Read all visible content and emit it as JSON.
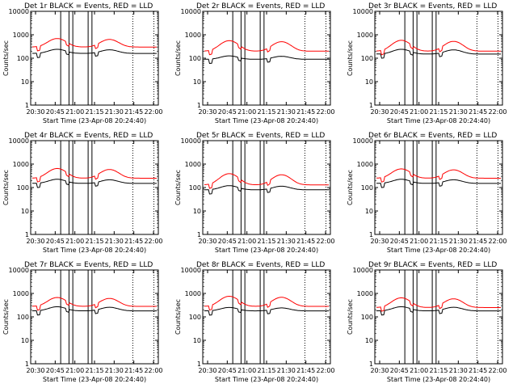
{
  "colors": {
    "events": "#000000",
    "lld": "#ff0000"
  },
  "chart_data": [
    {
      "type": "line",
      "title": "Det 1r BLACK = Events, RED = LLD",
      "xlabel": "Start Time (23-Apr-08 20:24:40)",
      "ylabel": "Counts/sec",
      "x": [
        "20:30",
        "20:45",
        "21:00",
        "21:15",
        "21:30",
        "21:45",
        "22:00"
      ],
      "yscale": "log",
      "ylim": [
        1,
        10000
      ],
      "yticks": [
        "1",
        "10",
        "100",
        "1000",
        "10000"
      ],
      "series": [
        {
          "name": "BLACK = Events",
          "baseline": 160,
          "amp": 1.5
        },
        {
          "name": "RED = LLD",
          "baseline": 300,
          "amp": 2.3
        }
      ]
    },
    {
      "type": "line",
      "title": "Det 2r BLACK = Events, RED = LLD",
      "xlabel": "Start Time (23-Apr-08 20:24:40)",
      "ylabel": "Counts/sec",
      "x": [
        "20:30",
        "20:45",
        "21:00",
        "21:15",
        "21:30",
        "21:45",
        "22:00"
      ],
      "yscale": "log",
      "ylim": [
        1,
        10000
      ],
      "yticks": [
        "1",
        "10",
        "100",
        "1000",
        "10000"
      ],
      "series": [
        {
          "name": "BLACK = Events",
          "baseline": 90,
          "amp": 1.4
        },
        {
          "name": "RED = LLD",
          "baseline": 200,
          "amp": 2.8
        }
      ]
    },
    {
      "type": "line",
      "title": "Det 3r BLACK = Events, RED = LLD",
      "xlabel": "Start Time (23-Apr-08 20:24:40)",
      "ylabel": "Counts/sec",
      "x": [
        "20:30",
        "20:45",
        "21:00",
        "21:15",
        "21:30",
        "21:45",
        "22:00"
      ],
      "yscale": "log",
      "ylim": [
        1,
        10000
      ],
      "yticks": [
        "1",
        "10",
        "100",
        "1000",
        "10000"
      ],
      "series": [
        {
          "name": "BLACK = Events",
          "baseline": 150,
          "amp": 1.6
        },
        {
          "name": "RED = LLD",
          "baseline": 200,
          "amp": 2.9
        }
      ]
    },
    {
      "type": "line",
      "title": "Det 4r BLACK = Events, RED = LLD",
      "xlabel": "Start Time (23-Apr-08 20:24:40)",
      "ylabel": "Counts/sec",
      "x": [
        "20:30",
        "20:45",
        "21:00",
        "21:15",
        "21:30",
        "21:45",
        "22:00"
      ],
      "yscale": "log",
      "ylim": [
        1,
        10000
      ],
      "yticks": [
        "1",
        "10",
        "100",
        "1000",
        "10000"
      ],
      "series": [
        {
          "name": "BLACK = Events",
          "baseline": 150,
          "amp": 1.5
        },
        {
          "name": "RED = LLD",
          "baseline": 250,
          "amp": 2.6
        }
      ]
    },
    {
      "type": "line",
      "title": "Det 5r BLACK = Events, RED = LLD",
      "xlabel": "Start Time (23-Apr-08 20:24:40)",
      "ylabel": "Counts/sec",
      "x": [
        "20:30",
        "20:45",
        "21:00",
        "21:15",
        "21:30",
        "21:45",
        "22:00"
      ],
      "yscale": "log",
      "ylim": [
        1,
        10000
      ],
      "yticks": [
        "1",
        "10",
        "100",
        "1000",
        "10000"
      ],
      "series": [
        {
          "name": "BLACK = Events",
          "baseline": 80,
          "amp": 1.5
        },
        {
          "name": "RED = LLD",
          "baseline": 130,
          "amp": 3.0
        }
      ]
    },
    {
      "type": "line",
      "title": "Det 6r BLACK = Events, RED = LLD",
      "xlabel": "Start Time (23-Apr-08 20:24:40)",
      "ylabel": "Counts/sec",
      "x": [
        "20:30",
        "20:45",
        "21:00",
        "21:15",
        "21:30",
        "21:45",
        "22:00"
      ],
      "yscale": "log",
      "ylim": [
        1,
        10000
      ],
      "yticks": [
        "1",
        "10",
        "100",
        "1000",
        "10000"
      ],
      "series": [
        {
          "name": "BLACK = Events",
          "baseline": 150,
          "amp": 1.5
        },
        {
          "name": "RED = LLD",
          "baseline": 250,
          "amp": 2.5
        }
      ]
    },
    {
      "type": "line",
      "title": "Det 7r BLACK = Events, RED = LLD",
      "xlabel": "Start Time (23-Apr-08 20:24:40)",
      "ylabel": "Counts/sec",
      "x": [
        "20:30",
        "20:45",
        "21:00",
        "21:15",
        "21:30",
        "21:45",
        "22:00"
      ],
      "yscale": "log",
      "ylim": [
        1,
        10000
      ],
      "yticks": [
        "1",
        "10",
        "100",
        "1000",
        "10000"
      ],
      "series": [
        {
          "name": "BLACK = Events",
          "baseline": 180,
          "amp": 1.5
        },
        {
          "name": "RED = LLD",
          "baseline": 280,
          "amp": 2.4
        }
      ]
    },
    {
      "type": "line",
      "title": "Det 8r BLACK = Events, RED = LLD",
      "xlabel": "Start Time (23-Apr-08 20:24:40)",
      "ylabel": "Counts/sec",
      "x": [
        "20:30",
        "20:45",
        "21:00",
        "21:15",
        "21:30",
        "21:45",
        "22:00"
      ],
      "yscale": "log",
      "ylim": [
        1,
        10000
      ],
      "yticks": [
        "1",
        "10",
        "100",
        "1000",
        "10000"
      ],
      "series": [
        {
          "name": "BLACK = Events",
          "baseline": 180,
          "amp": 1.4
        },
        {
          "name": "RED = LLD",
          "baseline": 280,
          "amp": 2.7
        }
      ]
    },
    {
      "type": "line",
      "title": "Det 9r BLACK = Events, RED = LLD",
      "xlabel": "Start Time (23-Apr-08 20:24:40)",
      "ylabel": "Counts/sec",
      "x": [
        "20:30",
        "20:45",
        "21:00",
        "21:15",
        "21:30",
        "21:45",
        "22:00"
      ],
      "yscale": "log",
      "ylim": [
        1,
        10000
      ],
      "yticks": [
        "1",
        "10",
        "100",
        "1000",
        "10000"
      ],
      "series": [
        {
          "name": "BLACK = Events",
          "baseline": 180,
          "amp": 1.5
        },
        {
          "name": "RED = LLD",
          "baseline": 250,
          "amp": 2.6
        }
      ]
    }
  ]
}
